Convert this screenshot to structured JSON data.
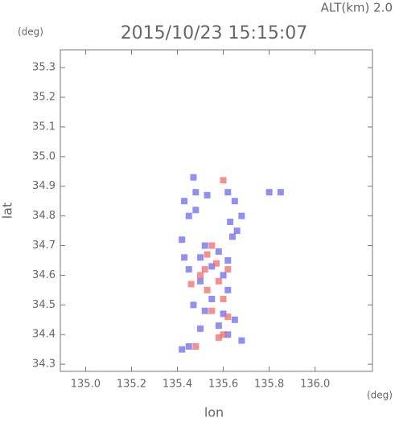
{
  "chart_data": {
    "type": "scatter",
    "annotation": "ALT(km) 2.0",
    "title": "2015/10/23 15:15:07",
    "y_unit": "(deg)",
    "x_unit": "(deg)",
    "xlabel": "lon",
    "ylabel": "lat",
    "xlim": [
      134.89,
      136.25
    ],
    "ylim": [
      34.276,
      35.36
    ],
    "xticks": [
      {
        "value": 135.0,
        "label": "135.0"
      },
      135.2,
      135.4,
      135.6,
      135.8,
      {
        "value": 136.0,
        "label": "136.0"
      }
    ],
    "yticks": [
      34.3,
      34.4,
      34.5,
      34.6,
      34.7,
      34.8,
      34.9,
      {
        "value": 35.0,
        "label": "35.0"
      },
      35.1,
      35.2,
      35.3
    ],
    "series": [
      {
        "color": "#6b6bf0",
        "x": [
          135.47,
          135.48,
          135.43,
          135.48,
          135.53,
          135.45,
          135.62,
          135.65,
          135.68,
          135.66,
          135.63,
          135.64,
          135.8,
          135.85,
          135.52,
          135.58,
          135.5,
          135.62,
          135.55,
          135.45,
          135.6,
          135.5,
          135.62,
          135.55,
          135.47,
          135.52,
          135.6,
          135.65,
          135.58,
          135.62,
          135.68,
          135.5,
          135.45,
          135.42,
          135.42,
          135.43
        ],
        "y": [
          34.93,
          34.88,
          34.85,
          34.82,
          34.87,
          34.8,
          34.88,
          34.85,
          34.8,
          34.75,
          34.78,
          34.73,
          34.88,
          34.88,
          34.7,
          34.68,
          34.66,
          34.65,
          34.63,
          34.62,
          34.6,
          34.58,
          34.55,
          34.52,
          34.5,
          34.48,
          34.47,
          34.45,
          34.43,
          34.4,
          34.38,
          34.42,
          34.36,
          34.35,
          34.72,
          34.66
        ]
      },
      {
        "color": "#f06b6b",
        "x": [
          135.6,
          135.55,
          135.53,
          135.57,
          135.52,
          135.5,
          135.58,
          135.46,
          135.53,
          135.6,
          135.55,
          135.62,
          135.6,
          135.58,
          135.48,
          135.62
        ],
        "y": [
          34.92,
          34.7,
          34.67,
          34.64,
          34.62,
          34.6,
          34.58,
          34.57,
          34.55,
          34.52,
          34.48,
          34.46,
          34.4,
          34.39,
          34.36,
          34.62
        ]
      }
    ]
  }
}
